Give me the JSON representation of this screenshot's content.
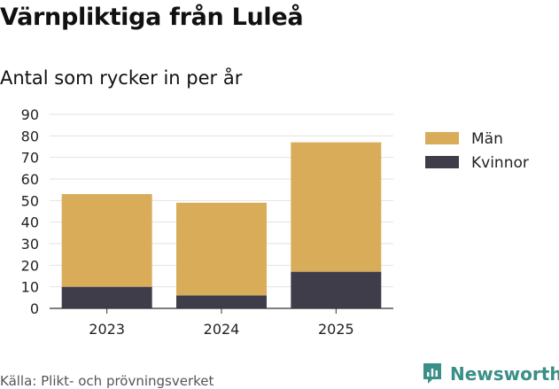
{
  "header": {
    "title": "Värnpliktiga från Luleå",
    "subtitle": "Antal som rycker in per år"
  },
  "chart_data": {
    "type": "bar",
    "stacked": true,
    "categories": [
      "2023",
      "2024",
      "2025"
    ],
    "series": [
      {
        "name": "Kvinnor",
        "values": [
          10,
          6,
          17
        ],
        "color": "#403d4b"
      },
      {
        "name": "Män",
        "values": [
          43,
          43,
          60
        ],
        "color": "#d9ac5a"
      }
    ],
    "legend_order": [
      "Män",
      "Kvinnor"
    ],
    "ylim": [
      0,
      90
    ],
    "yticks": [
      0,
      10,
      20,
      30,
      40,
      50,
      60,
      70,
      80,
      90
    ],
    "xlabel": "",
    "ylabel": "",
    "grid": true,
    "legend_position": "right"
  },
  "footer": {
    "source": "Källa: Plikt- och prövningsverket",
    "brand": "Newsworthy",
    "brand_icon": "newsworthy-logo-icon",
    "brand_color": "#3a8f86"
  }
}
